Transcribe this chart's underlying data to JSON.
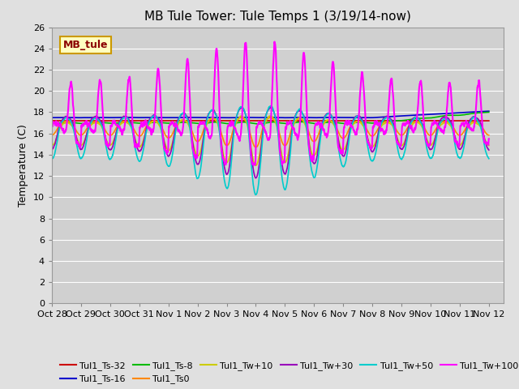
{
  "title": "MB Tule Tower: Tule Temps 1 (3/19/14-now)",
  "ylabel": "Temperature (C)",
  "xlim_days": [
    0,
    15.5
  ],
  "ylim": [
    0,
    26
  ],
  "yticks": [
    0,
    2,
    4,
    6,
    8,
    10,
    12,
    14,
    16,
    18,
    20,
    22,
    24,
    26
  ],
  "xtick_labels": [
    "Oct 28",
    "Oct 29",
    "Oct 30",
    "Oct 31",
    "Nov 1",
    "Nov 2",
    "Nov 3",
    "Nov 4",
    "Nov 5",
    "Nov 6",
    "Nov 7",
    "Nov 8",
    "Nov 9",
    "Nov 10",
    "Nov 11",
    "Nov 12"
  ],
  "xtick_positions": [
    0,
    1,
    2,
    3,
    4,
    5,
    6,
    7,
    8,
    9,
    10,
    11,
    12,
    13,
    14,
    15
  ],
  "series_order": [
    "Tul1_Ts-32",
    "Tul1_Ts-16",
    "Tul1_Ts-8",
    "Tul1_Ts0",
    "Tul1_Tw+10",
    "Tul1_Tw+30",
    "Tul1_Tw+50",
    "Tul1_Tw+100"
  ],
  "series": {
    "Tul1_Ts-32": {
      "color": "#cc0000",
      "lw": 1.2
    },
    "Tul1_Ts-16": {
      "color": "#0000cc",
      "lw": 1.2
    },
    "Tul1_Ts-8": {
      "color": "#00bb00",
      "lw": 1.2
    },
    "Tul1_Ts0": {
      "color": "#ff8800",
      "lw": 1.2
    },
    "Tul1_Tw+10": {
      "color": "#cccc00",
      "lw": 1.2
    },
    "Tul1_Tw+30": {
      "color": "#9900bb",
      "lw": 1.2
    },
    "Tul1_Tw+50": {
      "color": "#00cccc",
      "lw": 1.2
    },
    "Tul1_Tw+100": {
      "color": "#ff00ff",
      "lw": 1.5
    }
  },
  "legend_label": "MB_tule",
  "bg_color": "#e0e0e0",
  "plot_bg": "#d0d0d0",
  "title_fontsize": 11,
  "axis_fontsize": 9,
  "tick_fontsize": 8
}
